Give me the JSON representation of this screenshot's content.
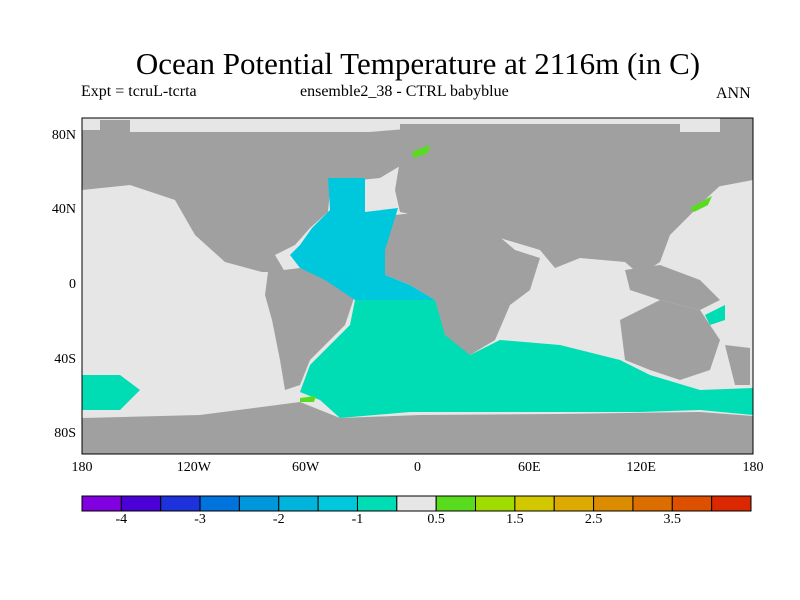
{
  "title": "Ocean Potential Temperature at 2116m (in C)",
  "experiment": "Expt = tcruL-tcrta",
  "ensemble": "ensemble2_38 - CTRL babyblue",
  "season": "ANN",
  "lat_labels": [
    "80N",
    "40N",
    "0",
    "40S",
    "80S"
  ],
  "lon_labels": [
    "180",
    "120W",
    "60W",
    "0",
    "60E",
    "120E",
    "180"
  ],
  "colorbar": {
    "colors": [
      "#8000e0",
      "#4b00d8",
      "#1e32dc",
      "#0073dc",
      "#0096dc",
      "#00b4dc",
      "#00c8dc",
      "#00dcb4",
      "#e6e6e6",
      "#5adc1e",
      "#a0dc00",
      "#d2c800",
      "#dcaa00",
      "#dc8c00",
      "#dc6e00",
      "#dc5000",
      "#dc2800"
    ],
    "labels": [
      "-4",
      "-3",
      "-2",
      "-1",
      "0.5",
      "1.5",
      "2.5",
      "3.5"
    ]
  },
  "colors": {
    "land": "#a0a0a0",
    "ocean_neutral": "#e6e6e6",
    "atlantic": "#00c8dc",
    "southern": "#00dcb4"
  }
}
